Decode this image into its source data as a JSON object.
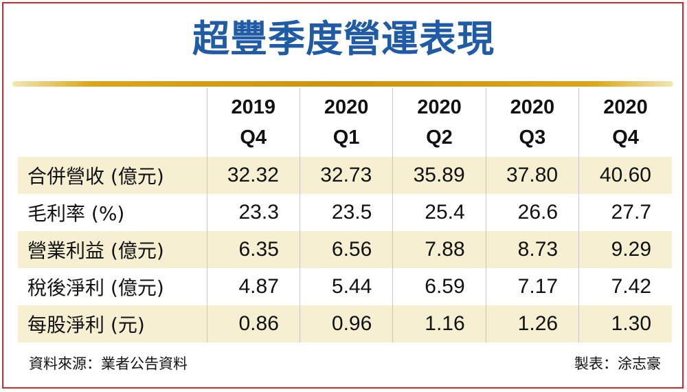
{
  "title": "超豐季度營運表現",
  "table": {
    "columns": [
      {
        "year": "2019",
        "quarter": "Q4"
      },
      {
        "year": "2020",
        "quarter": "Q1"
      },
      {
        "year": "2020",
        "quarter": "Q2"
      },
      {
        "year": "2020",
        "quarter": "Q3"
      },
      {
        "year": "2020",
        "quarter": "Q4"
      }
    ],
    "rows": [
      {
        "label": "合併營收 (億元)",
        "values": [
          "32.32",
          "32.73",
          "35.89",
          "37.80",
          "40.60"
        ]
      },
      {
        "label": "毛利率 (%)",
        "values": [
          "23.3",
          "23.5",
          "25.4",
          "26.6",
          "27.7"
        ]
      },
      {
        "label": "營業利益 (億元)",
        "values": [
          "6.35",
          "6.56",
          "7.88",
          "8.73",
          "9.29"
        ]
      },
      {
        "label": "稅後淨利 (億元)",
        "values": [
          "4.87",
          "5.44",
          "6.59",
          "7.17",
          "7.42"
        ]
      },
      {
        "label": "每股淨利 (元)",
        "values": [
          "0.86",
          "0.96",
          "1.16",
          "1.26",
          "1.30"
        ]
      }
    ]
  },
  "footer": {
    "source": "資料來源：業者公告資料",
    "credit": "製表：涂志豪"
  },
  "colors": {
    "title": "#1f5ba6",
    "border": "#d9252b",
    "divider": "#c99313",
    "row_shade": "#f6efd2"
  }
}
